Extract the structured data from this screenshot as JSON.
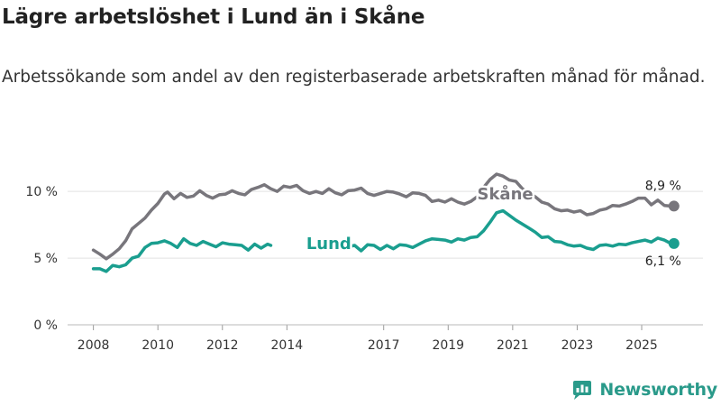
{
  "title": "Lägre arbetslöshet i Lund än i Skåne",
  "subtitle": "Arbetssökande som andel av den registerbaserade arbetskraften månad för månad.",
  "brand": {
    "name": "Newsworthy",
    "color": "#2a9a8a"
  },
  "chart_data": {
    "type": "line",
    "title": "Lägre arbetslöshet i Lund än i Skåne",
    "xlabel": "",
    "ylabel": "",
    "ylim": [
      0,
      11.5
    ],
    "grid": true,
    "x_ticks": [
      {
        "value": 2008,
        "label": "2008"
      },
      {
        "value": 2010,
        "label": "2010"
      },
      {
        "value": 2012,
        "label": "2012"
      },
      {
        "value": 2014,
        "label": "2014"
      },
      {
        "value": 2017,
        "label": "2017"
      },
      {
        "value": 2019,
        "label": "2019"
      },
      {
        "value": 2021,
        "label": "2021"
      },
      {
        "value": 2023,
        "label": "2023"
      },
      {
        "value": 2025,
        "label": "2025"
      }
    ],
    "y_ticks": [
      {
        "value": 0,
        "label": "0 %"
      },
      {
        "value": 5,
        "label": "5 %"
      },
      {
        "value": 10,
        "label": "10 %"
      }
    ],
    "x_range": [
      2007.2,
      2026.9
    ],
    "series": [
      {
        "name": "Skåne",
        "color": "#78767c",
        "end_label": "8,9 %",
        "points": [
          [
            2008.0,
            5.6
          ],
          [
            2008.2,
            5.3
          ],
          [
            2008.4,
            4.95
          ],
          [
            2008.6,
            5.3
          ],
          [
            2008.8,
            5.7
          ],
          [
            2009.0,
            6.3
          ],
          [
            2009.2,
            7.2
          ],
          [
            2009.4,
            7.6
          ],
          [
            2009.6,
            8.0
          ],
          [
            2009.8,
            8.6
          ],
          [
            2010.0,
            9.1
          ],
          [
            2010.2,
            9.8
          ],
          [
            2010.3,
            9.95
          ],
          [
            2010.5,
            9.45
          ],
          [
            2010.7,
            9.85
          ],
          [
            2010.9,
            9.55
          ],
          [
            2011.1,
            9.65
          ],
          [
            2011.3,
            10.05
          ],
          [
            2011.5,
            9.7
          ],
          [
            2011.7,
            9.5
          ],
          [
            2011.9,
            9.75
          ],
          [
            2012.1,
            9.8
          ],
          [
            2012.3,
            10.05
          ],
          [
            2012.5,
            9.85
          ],
          [
            2012.7,
            9.75
          ],
          [
            2012.9,
            10.15
          ],
          [
            2013.1,
            10.3
          ],
          [
            2013.3,
            10.5
          ],
          [
            2013.5,
            10.2
          ],
          [
            2013.7,
            10.0
          ],
          [
            2013.9,
            10.4
          ],
          [
            2014.1,
            10.3
          ],
          [
            2014.3,
            10.45
          ],
          [
            2014.5,
            10.05
          ],
          [
            2014.7,
            9.85
          ],
          [
            2014.9,
            10.0
          ],
          [
            2015.1,
            9.85
          ],
          [
            2015.3,
            10.2
          ],
          [
            2015.5,
            9.9
          ],
          [
            2015.7,
            9.75
          ],
          [
            2015.9,
            10.05
          ],
          [
            2016.1,
            10.1
          ],
          [
            2016.3,
            10.25
          ],
          [
            2016.5,
            9.85
          ],
          [
            2016.7,
            9.7
          ],
          [
            2016.9,
            9.85
          ],
          [
            2017.1,
            10.0
          ],
          [
            2017.3,
            9.95
          ],
          [
            2017.5,
            9.8
          ],
          [
            2017.7,
            9.6
          ],
          [
            2017.9,
            9.9
          ],
          [
            2018.1,
            9.85
          ],
          [
            2018.3,
            9.7
          ],
          [
            2018.5,
            9.25
          ],
          [
            2018.7,
            9.35
          ],
          [
            2018.9,
            9.2
          ],
          [
            2019.1,
            9.45
          ],
          [
            2019.3,
            9.2
          ],
          [
            2019.5,
            9.05
          ],
          [
            2019.7,
            9.25
          ],
          [
            2019.9,
            9.6
          ],
          [
            2020.1,
            10.3
          ],
          [
            2020.3,
            10.9
          ],
          [
            2020.5,
            11.3
          ],
          [
            2020.7,
            11.15
          ],
          [
            2020.9,
            10.85
          ],
          [
            2021.1,
            10.75
          ],
          [
            2021.3,
            10.2
          ],
          [
            2021.5,
            9.9
          ],
          [
            2021.7,
            9.6
          ],
          [
            2021.9,
            9.2
          ],
          [
            2022.1,
            9.05
          ],
          [
            2022.3,
            8.7
          ],
          [
            2022.5,
            8.55
          ],
          [
            2022.7,
            8.6
          ],
          [
            2022.9,
            8.45
          ],
          [
            2023.1,
            8.55
          ],
          [
            2023.3,
            8.25
          ],
          [
            2023.5,
            8.35
          ],
          [
            2023.7,
            8.6
          ],
          [
            2023.9,
            8.7
          ],
          [
            2024.1,
            8.95
          ],
          [
            2024.3,
            8.9
          ],
          [
            2024.5,
            9.05
          ],
          [
            2024.7,
            9.25
          ],
          [
            2024.9,
            9.5
          ],
          [
            2025.1,
            9.5
          ],
          [
            2025.3,
            9.0
          ],
          [
            2025.5,
            9.35
          ],
          [
            2025.7,
            8.95
          ],
          [
            2025.9,
            8.9
          ],
          [
            2026.0,
            8.9
          ]
        ]
      },
      {
        "name": "Lund",
        "color": "#1a9e8f",
        "end_label": "6,1 %",
        "points": [
          [
            2008.0,
            4.2
          ],
          [
            2008.2,
            4.2
          ],
          [
            2008.4,
            4.0
          ],
          [
            2008.6,
            4.45
          ],
          [
            2008.8,
            4.35
          ],
          [
            2009.0,
            4.5
          ],
          [
            2009.2,
            5.0
          ],
          [
            2009.4,
            5.15
          ],
          [
            2009.6,
            5.8
          ],
          [
            2009.8,
            6.1
          ],
          [
            2010.0,
            6.15
          ],
          [
            2010.2,
            6.3
          ],
          [
            2010.4,
            6.1
          ],
          [
            2010.6,
            5.8
          ],
          [
            2010.8,
            6.45
          ],
          [
            2011.0,
            6.1
          ],
          [
            2011.2,
            5.95
          ],
          [
            2011.4,
            6.25
          ],
          [
            2011.6,
            6.05
          ],
          [
            2011.8,
            5.85
          ],
          [
            2012.0,
            6.15
          ],
          [
            2012.2,
            6.05
          ],
          [
            2012.4,
            6.0
          ],
          [
            2012.6,
            5.95
          ],
          [
            2012.8,
            5.6
          ],
          [
            2013.0,
            6.05
          ],
          [
            2013.2,
            5.75
          ],
          [
            2013.4,
            6.05
          ],
          [
            2013.5,
            5.95
          ],
          [
            2015.8,
            5.9
          ],
          [
            2015.9,
            5.85
          ],
          [
            2016.1,
            5.95
          ],
          [
            2016.3,
            5.55
          ],
          [
            2016.5,
            6.0
          ],
          [
            2016.7,
            5.95
          ],
          [
            2016.9,
            5.65
          ],
          [
            2017.1,
            5.95
          ],
          [
            2017.3,
            5.7
          ],
          [
            2017.5,
            6.0
          ],
          [
            2017.7,
            5.95
          ],
          [
            2017.9,
            5.8
          ],
          [
            2018.1,
            6.05
          ],
          [
            2018.3,
            6.3
          ],
          [
            2018.5,
            6.45
          ],
          [
            2018.7,
            6.4
          ],
          [
            2018.9,
            6.35
          ],
          [
            2019.1,
            6.2
          ],
          [
            2019.3,
            6.45
          ],
          [
            2019.5,
            6.35
          ],
          [
            2019.7,
            6.55
          ],
          [
            2019.9,
            6.6
          ],
          [
            2020.1,
            7.05
          ],
          [
            2020.3,
            7.7
          ],
          [
            2020.5,
            8.4
          ],
          [
            2020.7,
            8.55
          ],
          [
            2020.9,
            8.2
          ],
          [
            2021.1,
            7.85
          ],
          [
            2021.3,
            7.55
          ],
          [
            2021.5,
            7.25
          ],
          [
            2021.7,
            6.95
          ],
          [
            2021.9,
            6.55
          ],
          [
            2022.1,
            6.6
          ],
          [
            2022.3,
            6.25
          ],
          [
            2022.5,
            6.2
          ],
          [
            2022.7,
            6.0
          ],
          [
            2022.9,
            5.9
          ],
          [
            2023.1,
            5.95
          ],
          [
            2023.3,
            5.75
          ],
          [
            2023.5,
            5.65
          ],
          [
            2023.7,
            5.95
          ],
          [
            2023.9,
            6.0
          ],
          [
            2024.1,
            5.9
          ],
          [
            2024.3,
            6.05
          ],
          [
            2024.5,
            6.0
          ],
          [
            2024.7,
            6.15
          ],
          [
            2024.9,
            6.25
          ],
          [
            2025.1,
            6.35
          ],
          [
            2025.3,
            6.2
          ],
          [
            2025.5,
            6.5
          ],
          [
            2025.7,
            6.35
          ],
          [
            2025.9,
            6.1
          ],
          [
            2026.0,
            6.1
          ]
        ]
      }
    ],
    "annotations": [
      {
        "series": "Skåne",
        "text": "Skåne",
        "x": 2019.9,
        "y": 9.8
      },
      {
        "series": "Lund",
        "text": "Lund",
        "x": 2014.6,
        "y": 6.1
      }
    ]
  }
}
